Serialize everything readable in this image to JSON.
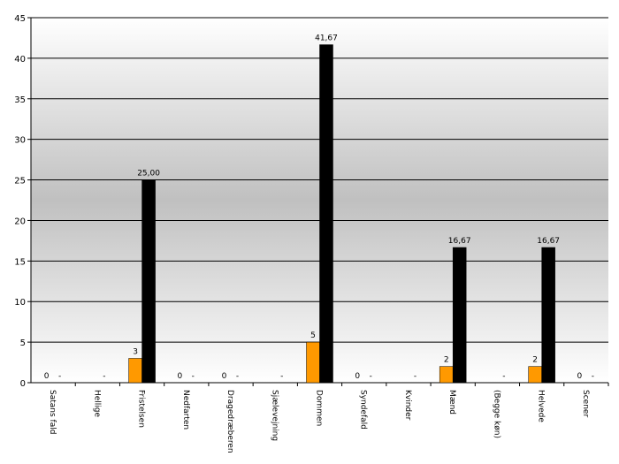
{
  "chart_data": {
    "type": "bar",
    "categories": [
      "Satans fald",
      "Hellige",
      "Fristelsen",
      "Nedfarten",
      "Dragedræberen",
      "Sjælevejning",
      "Dommen",
      "Syndefald",
      "Kvinder",
      "Mænd",
      "(Begge køn)",
      "Helvede",
      "Scener"
    ],
    "series": [
      {
        "color": "#ff9900",
        "values": [
          0,
          null,
          3,
          0,
          0,
          null,
          5,
          0,
          null,
          2,
          null,
          2,
          0
        ]
      },
      {
        "color": "#000000",
        "values": [
          null,
          null,
          25,
          null,
          null,
          null,
          41.67,
          null,
          null,
          16.67,
          null,
          16.67,
          null
        ],
        "value_labels": [
          "-",
          "-",
          "25,00",
          "-",
          "-",
          "-",
          "41,67",
          "-",
          "-",
          "16,67",
          "-",
          "16,67",
          "-"
        ]
      }
    ],
    "ylim": [
      0,
      45
    ],
    "yticks": [
      0,
      5,
      10,
      15,
      20,
      25,
      30,
      35,
      40,
      45
    ],
    "grid": true
  }
}
